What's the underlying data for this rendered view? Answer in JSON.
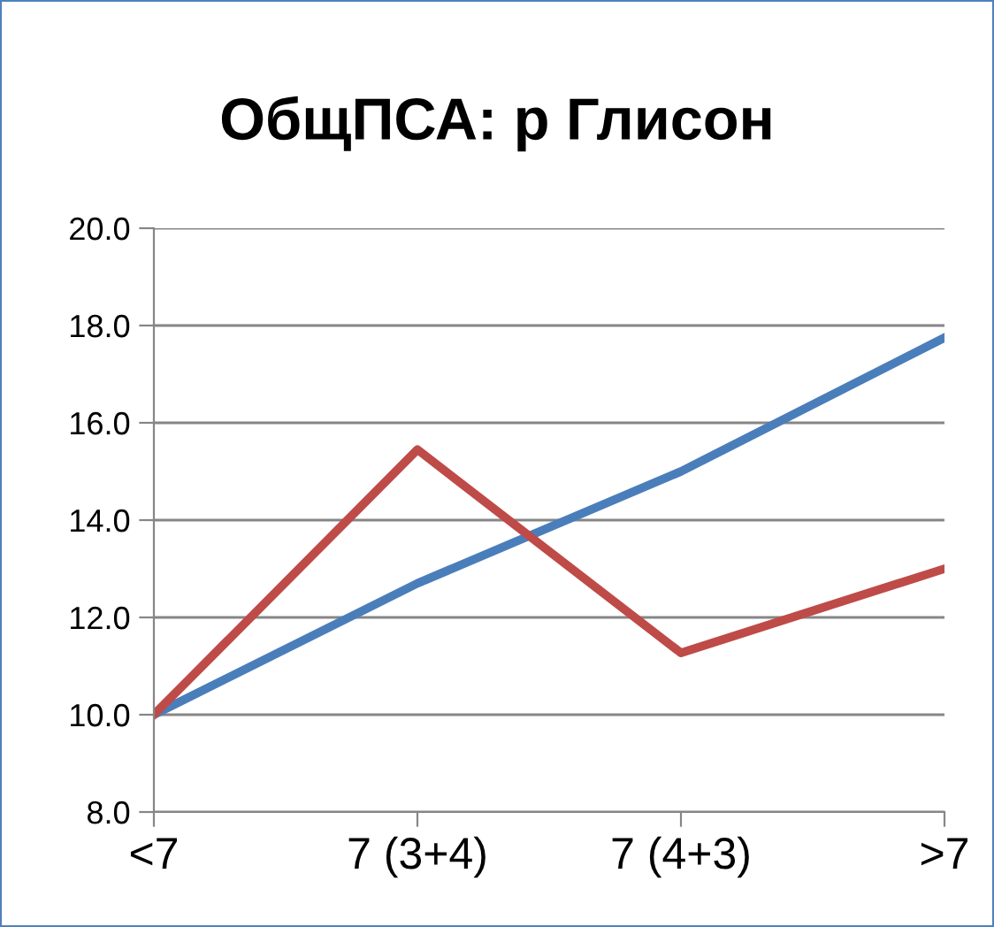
{
  "chart_data": {
    "type": "line",
    "title": "ОбщПСА: р Глисон",
    "categories": [
      "<7",
      "7 (3+4)",
      "7 (4+3)",
      ">7"
    ],
    "series": [
      {
        "color": "#4a7ebb",
        "values": [
          10.0,
          12.7,
          15.0,
          17.75
        ]
      },
      {
        "color": "#be4b48",
        "values": [
          10.0,
          15.45,
          11.27,
          13.0
        ]
      }
    ],
    "ylim": [
      8,
      20
    ],
    "yticks": [
      {
        "value": 8,
        "label": "8.0"
      },
      {
        "value": 10,
        "label": "10.0"
      },
      {
        "value": 12,
        "label": "12.0"
      },
      {
        "value": 14,
        "label": "14.0"
      },
      {
        "value": 16,
        "label": "16.0"
      },
      {
        "value": 18,
        "label": "18.0"
      },
      {
        "value": 20,
        "label": "20.0"
      }
    ],
    "grid": "y",
    "legend": false,
    "marker": "none",
    "line_style": "solid"
  }
}
